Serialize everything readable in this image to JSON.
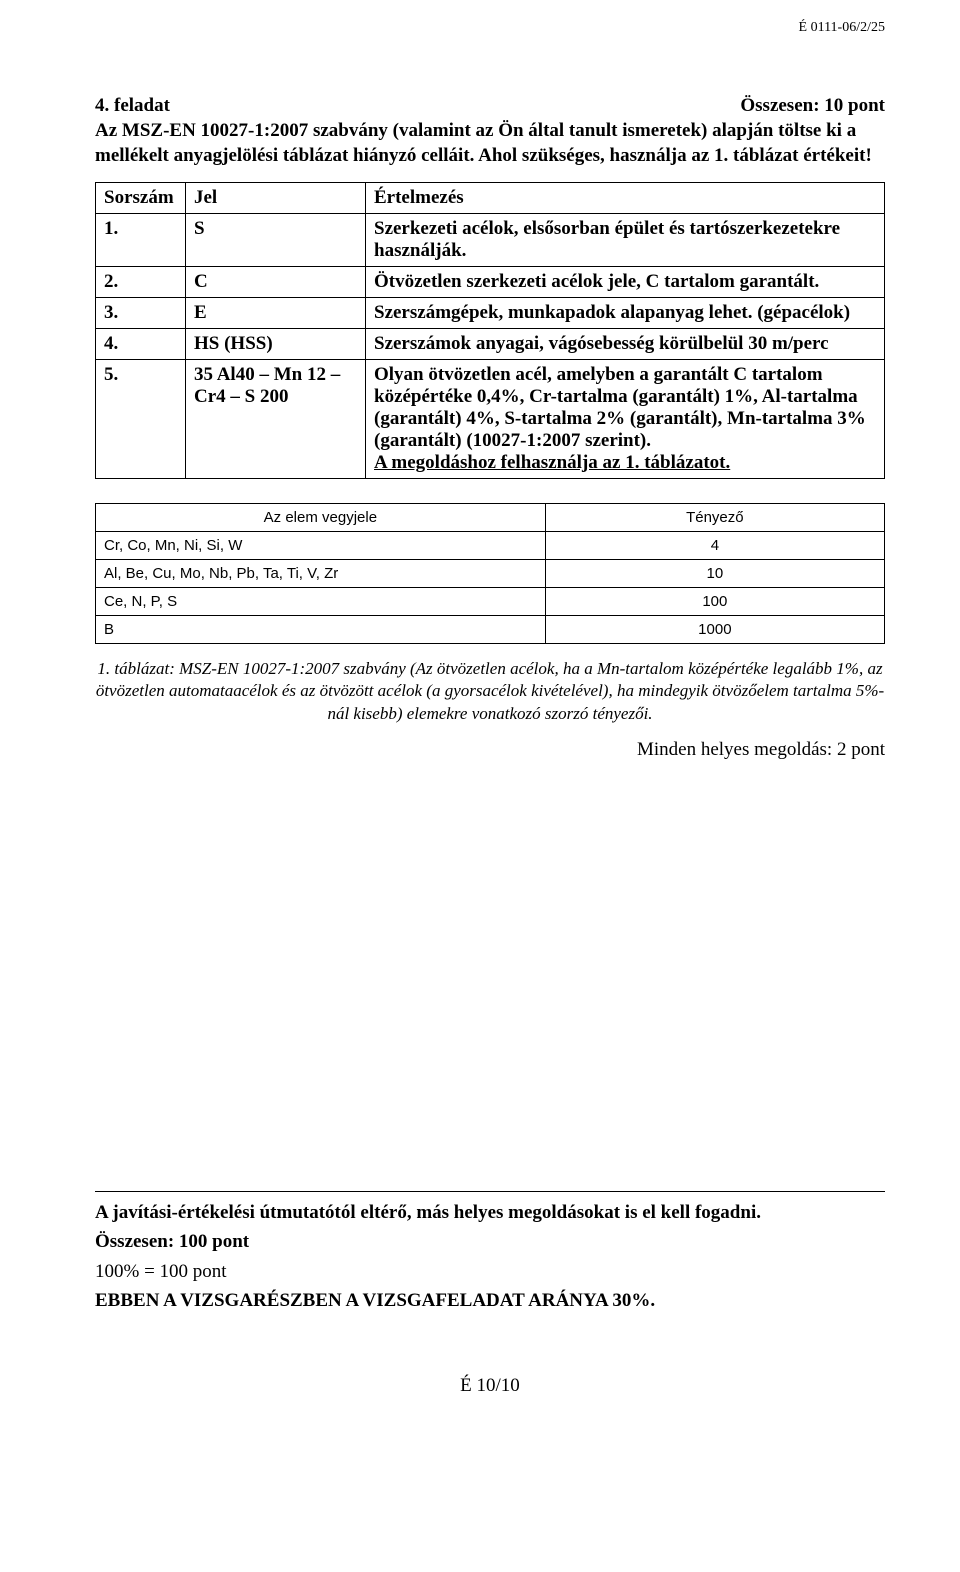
{
  "header_code": "É 0111-06/2/25",
  "task_number": "4. feladat",
  "task_total": "Összesen: 10 pont",
  "intro": "Az MSZ-EN 10027-1:2007 szabvány (valamint az Ön által tanult ismeretek) alapján töltse ki a mellékelt anyagjelölési táblázat hiányzó celláit. Ahol szükséges, használja az 1. táblázat értékeit!",
  "maintable": {
    "headers": {
      "col1": "Sorszám",
      "col2": "Jel",
      "col3": "Értelmezés"
    },
    "rows": [
      {
        "n": "1.",
        "jel": "S",
        "val": "Szerkezeti acélok, elsősorban épület és tartószerkezetekre használják."
      },
      {
        "n": "2.",
        "jel": "C",
        "val": "Ötvözetlen szerkezeti acélok jele, C tartalom garantált."
      },
      {
        "n": "3.",
        "jel": "E",
        "val": "Szerszámgépek, munkapadok alapanyag lehet. (gépacélok)"
      },
      {
        "n": "4.",
        "jel": "HS (HSS)",
        "val": "Szerszámok anyagai, vágósebesség körülbelül 30 m/perc"
      }
    ],
    "row5": {
      "n": "5.",
      "jel": "35 Al40 – Mn 12 – Cr4 – S 200",
      "val_main": "Olyan ötvözetlen acél, amelyben a garantált C tartalom középértéke 0,4%, Cr-tartalma (garantált) 1%, Al-tartalma (garantált) 4%, S-tartalma 2% (garantált), Mn-tartalma 3% (garantált) (10027-1:2007 szerint).",
      "val_underline": "A megoldáshoz felhasználja az 1. táblázatot."
    }
  },
  "subtable": {
    "headers": {
      "col1": "Az elem vegyjele",
      "col2": "Tényező"
    },
    "rows": [
      {
        "elem": "Cr, Co, Mn, Ni, Si, W",
        "factor": "4"
      },
      {
        "elem": "Al, Be, Cu, Mo, Nb, Pb, Ta, Ti, V, Zr",
        "factor": "10"
      },
      {
        "elem": "Ce, N, P, S",
        "factor": "100"
      },
      {
        "elem": "B",
        "factor": "1000"
      }
    ]
  },
  "caption": "1. táblázat: MSZ-EN 10027-1:2007 szabvány (Az ötvözetlen acélok, ha a Mn-tartalom középértéke legalább 1%, az ötvözetlen automataacélok és az ötvözött acélok (a gyorsacélok kivételével), ha mindegyik ötvözőelem tartalma 5%-nál kisebb) elemekre vonatkozó szorzó tényezői.",
  "scoring": "Minden helyes megoldás: 2 pont",
  "closing": {
    "line1": "A javítási-értékelési útmutatótól eltérő, más helyes megoldásokat is el kell fogadni.",
    "line2": "Összesen: 100 pont",
    "line3": "100% = 100 pont",
    "line4": "EBBEN A VIZSGARÉSZBEN A VIZSGAFELADAT ARÁNYA 30%."
  },
  "footer": "É 10/10"
}
